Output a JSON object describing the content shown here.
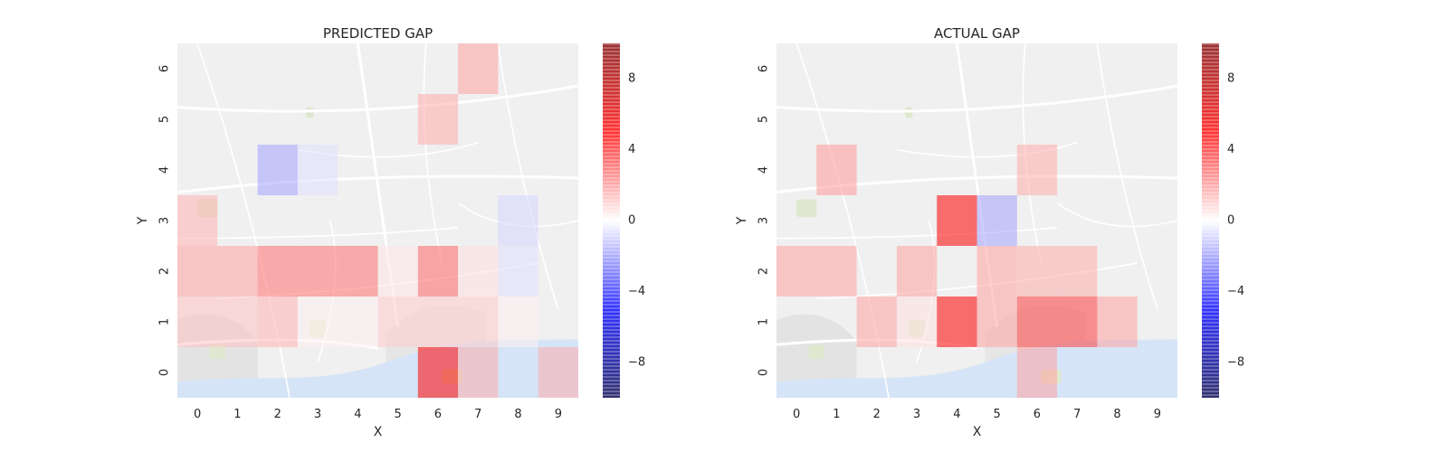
{
  "chart_data": [
    {
      "type": "heatmap",
      "title": "PREDICTED GAP",
      "xlabel": "X",
      "ylabel": "Y",
      "x_ticks": [
        0,
        1,
        2,
        3,
        4,
        5,
        6,
        7,
        8,
        9
      ],
      "y_ticks": [
        0,
        1,
        2,
        3,
        4,
        5,
        6
      ],
      "colorbar": {
        "vmin": -10,
        "vmax": 10,
        "ticks": [
          -8,
          -4,
          0,
          4,
          8
        ],
        "labels": [
          "−8",
          "−4",
          "0",
          "4",
          "8"
        ],
        "colormap": "seismic"
      },
      "cells": [
        {
          "x": 0,
          "y": 1,
          "v": 1.2
        },
        {
          "x": 1,
          "y": 1,
          "v": 1.2
        },
        {
          "x": 2,
          "y": 1,
          "v": 1.5
        },
        {
          "x": 3,
          "y": 1,
          "v": 0.3
        },
        {
          "x": 4,
          "y": 1,
          "v": 0.3
        },
        {
          "x": 5,
          "y": 1,
          "v": 1.0
        },
        {
          "x": 6,
          "y": 1,
          "v": 1.0
        },
        {
          "x": 7,
          "y": 1,
          "v": 1.0
        },
        {
          "x": 8,
          "y": 1,
          "v": 0.3
        },
        {
          "x": 0,
          "y": 2,
          "v": 1.8
        },
        {
          "x": 1,
          "y": 2,
          "v": 1.8
        },
        {
          "x": 2,
          "y": 2,
          "v": 2.8
        },
        {
          "x": 3,
          "y": 2,
          "v": 2.8
        },
        {
          "x": 4,
          "y": 2,
          "v": 2.8
        },
        {
          "x": 5,
          "y": 2,
          "v": 0.5
        },
        {
          "x": 6,
          "y": 2,
          "v": 3.0
        },
        {
          "x": 7,
          "y": 2,
          "v": 0.6
        },
        {
          "x": 8,
          "y": 2,
          "v": -0.6
        },
        {
          "x": 0,
          "y": 3,
          "v": 1.5
        },
        {
          "x": 8,
          "y": 3,
          "v": -0.8
        },
        {
          "x": 2,
          "y": 4,
          "v": -1.8
        },
        {
          "x": 3,
          "y": 4,
          "v": -0.6
        },
        {
          "x": 6,
          "y": 5,
          "v": 1.6
        },
        {
          "x": 7,
          "y": 6,
          "v": 1.8
        },
        {
          "x": 6,
          "y": 0,
          "v": 5.0
        },
        {
          "x": 7,
          "y": 0,
          "v": 1.6
        },
        {
          "x": 9,
          "y": 0,
          "v": 1.6
        }
      ]
    },
    {
      "type": "heatmap",
      "title": "ACTUAL GAP",
      "xlabel": "X",
      "ylabel": "Y",
      "x_ticks": [
        0,
        1,
        2,
        3,
        4,
        5,
        6,
        7,
        8,
        9
      ],
      "y_ticks": [
        0,
        1,
        2,
        3,
        4,
        5,
        6
      ],
      "colorbar": {
        "vmin": -10,
        "vmax": 10,
        "ticks": [
          -8,
          -4,
          0,
          4,
          8
        ],
        "labels": [
          "−8",
          "−4",
          "0",
          "4",
          "8"
        ],
        "colormap": "seismic"
      },
      "cells": [
        {
          "x": 1,
          "y": 4,
          "v": 2.0
        },
        {
          "x": 6,
          "y": 4,
          "v": 1.6
        },
        {
          "x": 4,
          "y": 3,
          "v": 5.0
        },
        {
          "x": 5,
          "y": 3,
          "v": -1.8
        },
        {
          "x": 0,
          "y": 2,
          "v": 1.8
        },
        {
          "x": 1,
          "y": 2,
          "v": 1.8
        },
        {
          "x": 3,
          "y": 2,
          "v": 1.8
        },
        {
          "x": 5,
          "y": 2,
          "v": 1.8
        },
        {
          "x": 6,
          "y": 2,
          "v": 1.6
        },
        {
          "x": 7,
          "y": 2,
          "v": 1.6
        },
        {
          "x": 2,
          "y": 1,
          "v": 1.8
        },
        {
          "x": 3,
          "y": 1,
          "v": 0.6
        },
        {
          "x": 4,
          "y": 1,
          "v": 5.0
        },
        {
          "x": 5,
          "y": 1,
          "v": 1.8
        },
        {
          "x": 6,
          "y": 1,
          "v": 3.8
        },
        {
          "x": 7,
          "y": 1,
          "v": 3.8
        },
        {
          "x": 8,
          "y": 1,
          "v": 1.8
        },
        {
          "x": 6,
          "y": 0,
          "v": 1.8
        }
      ]
    }
  ]
}
